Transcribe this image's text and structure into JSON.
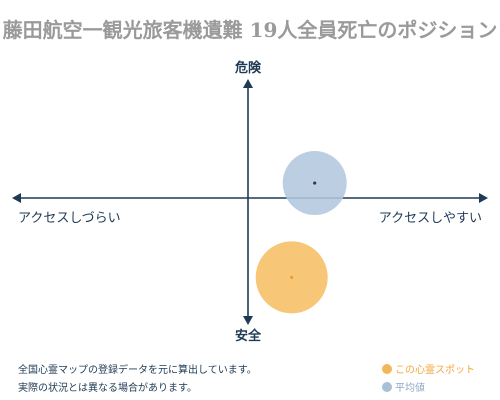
{
  "title": "藤田航空一観光旅客機遺難 19人全員死亡のポジション",
  "chart_data": {
    "type": "scatter",
    "x_axis": {
      "left_label": "アクセスしづらい",
      "right_label": "アクセスしやすい",
      "range": [
        -1,
        1
      ]
    },
    "y_axis": {
      "top_label": "危険",
      "bottom_label": "安全",
      "range": [
        -1,
        1
      ]
    },
    "series": [
      {
        "name": "この心霊スポット",
        "x": 0.19,
        "y": -0.69,
        "color": "#f6c26b",
        "center_color": "#f29a33"
      },
      {
        "name": "平均値",
        "x": 0.29,
        "y": 0.13,
        "color": "#b3c7dd",
        "center_color": "#2b3a4d"
      }
    ],
    "grid": false
  },
  "footer": {
    "line1": "全国心霊マップの登録データを元に算出しています。",
    "line2": "実際の状況とは異なる場合があります。"
  },
  "legend": {
    "this_spot": "この心霊スポット",
    "average": "平均値",
    "this_spot_color": "#f4b65a",
    "average_color": "#a9bfd6"
  }
}
